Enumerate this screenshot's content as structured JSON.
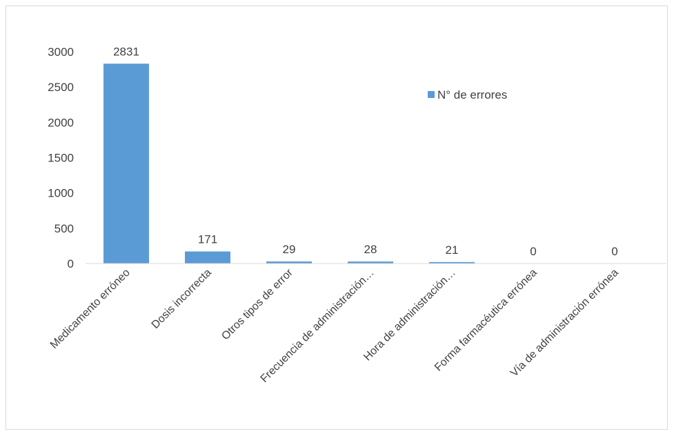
{
  "chart_data": {
    "type": "bar",
    "title": "",
    "xlabel": "",
    "ylabel": "",
    "categories": [
      "Medicamento erróneo",
      "Dosis incorrecta",
      "Otros tipos de error",
      "Frecuencia de administración…",
      "Hora de administración…",
      "Forma farmacéutica errónea",
      "Vía de administración errónea"
    ],
    "series": [
      {
        "name": "N° de errores",
        "values": [
          2831,
          171,
          29,
          28,
          21,
          0,
          0
        ],
        "color": "#5b9bd5"
      }
    ],
    "data_labels": [
      "2831",
      "171",
      "29",
      "28",
      "21",
      "0",
      "0"
    ],
    "ylim": [
      0,
      3000
    ],
    "yticks": [
      0,
      500,
      1000,
      1500,
      2000,
      2500,
      3000
    ],
    "ytick_labels": [
      "0",
      "500",
      "1000",
      "1500",
      "2000",
      "2500",
      "3000"
    ],
    "grid": false,
    "legend_position": "top-right",
    "axis_color": "#d9d9d9",
    "text_color": "#404040"
  }
}
